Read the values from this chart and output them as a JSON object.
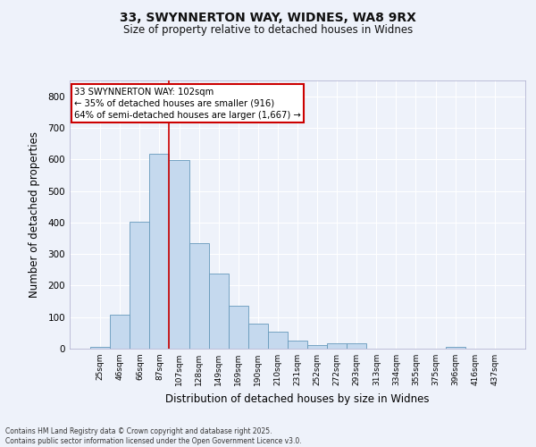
{
  "title_line1": "33, SWYNNERTON WAY, WIDNES, WA8 9RX",
  "title_line2": "Size of property relative to detached houses in Widnes",
  "xlabel": "Distribution of detached houses by size in Widnes",
  "ylabel": "Number of detached properties",
  "categories": [
    "25sqm",
    "46sqm",
    "66sqm",
    "87sqm",
    "107sqm",
    "128sqm",
    "149sqm",
    "169sqm",
    "190sqm",
    "210sqm",
    "231sqm",
    "252sqm",
    "272sqm",
    "293sqm",
    "313sqm",
    "334sqm",
    "355sqm",
    "375sqm",
    "396sqm",
    "416sqm",
    "437sqm"
  ],
  "values": [
    5,
    108,
    403,
    618,
    597,
    335,
    237,
    135,
    78,
    53,
    25,
    11,
    17,
    16,
    0,
    0,
    0,
    0,
    7,
    0,
    0
  ],
  "bar_color": "#c5d9ee",
  "bar_edge_color": "#6699bb",
  "background_color": "#eef2fa",
  "grid_color": "#ffffff",
  "redline_index": 3.5,
  "annotation_text": "33 SWYNNERTON WAY: 102sqm\n← 35% of detached houses are smaller (916)\n64% of semi-detached houses are larger (1,667) →",
  "annotation_box_color": "#ffffff",
  "annotation_box_edge": "#cc0000",
  "ylim": [
    0,
    850
  ],
  "yticks": [
    0,
    100,
    200,
    300,
    400,
    500,
    600,
    700,
    800
  ],
  "footer": "Contains HM Land Registry data © Crown copyright and database right 2025.\nContains public sector information licensed under the Open Government Licence v3.0."
}
